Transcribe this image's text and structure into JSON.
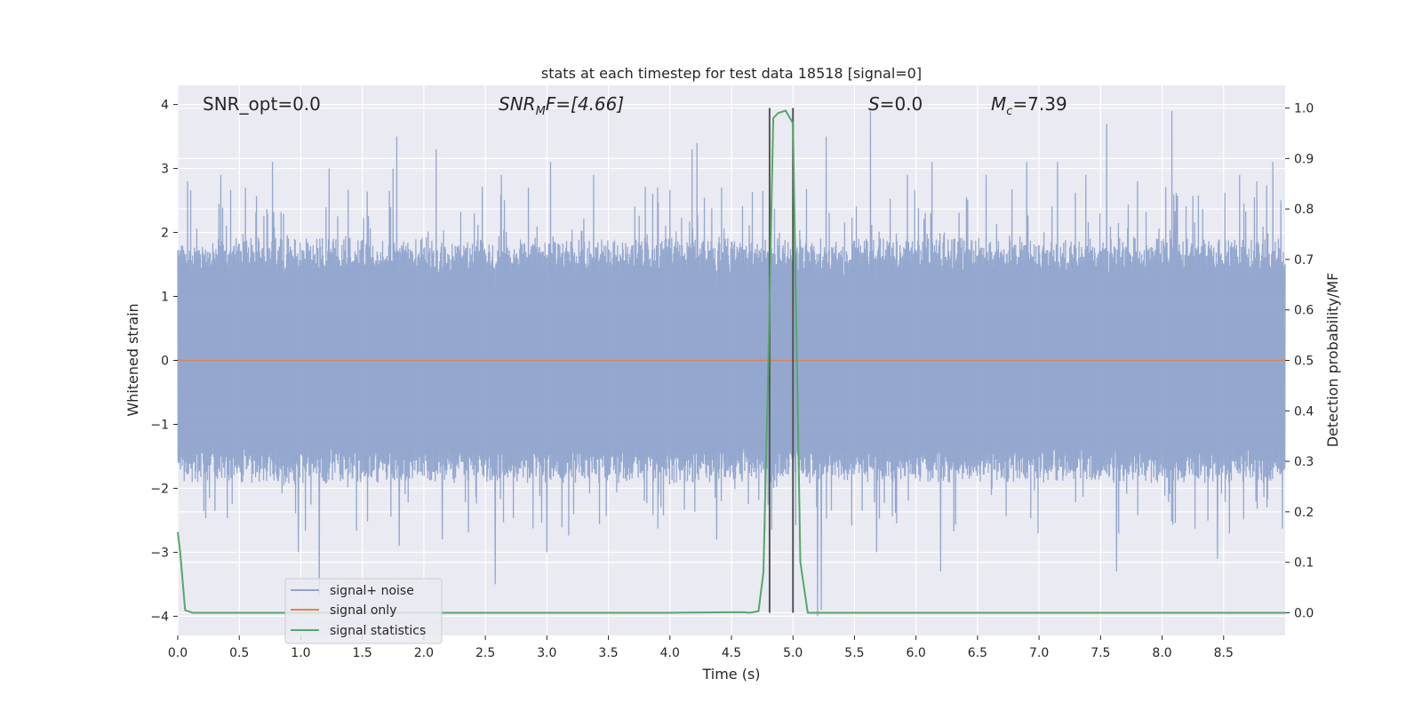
{
  "chart_data": {
    "type": "line",
    "title": "stats at each timestep for test data 18518 [signal=0]",
    "xlabel": "Time (s)",
    "ylabel": "Whitened strain",
    "y2label": "Detection probability/MF",
    "xlim": [
      0.0,
      9.0
    ],
    "ylim": [
      -4.3,
      4.3
    ],
    "y2lim": [
      -0.045,
      1.045
    ],
    "x_ticks": [
      "0.0",
      "0.5",
      "1.0",
      "1.5",
      "2.0",
      "2.5",
      "3.0",
      "3.5",
      "4.0",
      "4.5",
      "5.0",
      "5.5",
      "6.0",
      "6.5",
      "7.0",
      "7.5",
      "8.0",
      "8.5"
    ],
    "y_ticks": [
      "−4",
      "−3",
      "−2",
      "−1",
      "0",
      "1",
      "2",
      "3",
      "4"
    ],
    "y2_ticks": [
      "0.0",
      "0.1",
      "0.2",
      "0.3",
      "0.4",
      "0.5",
      "0.6",
      "0.7",
      "0.8",
      "0.9",
      "1.0"
    ],
    "grid": true,
    "legend_position": "lower-left",
    "colors": {
      "signal_noise": "#8fa4cc",
      "signal_only": "#dd8452",
      "signal_statistics": "#55a868",
      "vlines": "#555555",
      "background": "#eaeaf2"
    },
    "annotations": {
      "snr_opt": "SNR_opt=0.0",
      "snr_mf_main": "SNR",
      "snr_mf_sub": "M",
      "snr_mf_rest": "F=[4.66]",
      "s_italic": "S",
      "s_rest": "=0.0",
      "mc_main": "M",
      "mc_sub": "c",
      "mc_rest": "=7.39"
    },
    "vertical_lines_x": [
      4.81,
      5.0
    ],
    "series": [
      {
        "name": "signal+ noise",
        "axis": "left",
        "style": "noise band",
        "typical_range": [
          -1.6,
          1.6
        ],
        "peak_range": [
          -3.6,
          3.9
        ],
        "spikes": [
          [
            0.08,
            2.8
          ],
          [
            0.35,
            2.9
          ],
          [
            0.55,
            2.7
          ],
          [
            0.77,
            3.1
          ],
          [
            0.98,
            -3.0
          ],
          [
            1.15,
            -3.7
          ],
          [
            1.23,
            3.0
          ],
          [
            1.75,
            3.0
          ],
          [
            1.78,
            3.5
          ],
          [
            1.8,
            -2.9
          ],
          [
            2.1,
            3.3
          ],
          [
            2.15,
            -2.8
          ],
          [
            2.58,
            -3.5
          ],
          [
            2.63,
            2.9
          ],
          [
            3.0,
            -3.0
          ],
          [
            3.03,
            3.1
          ],
          [
            3.38,
            2.9
          ],
          [
            3.9,
            2.7
          ],
          [
            4.18,
            3.3
          ],
          [
            4.22,
            3.4
          ],
          [
            4.38,
            -2.8
          ],
          [
            4.42,
            2.7
          ],
          [
            5.2,
            -4.0
          ],
          [
            5.23,
            -3.9
          ],
          [
            5.27,
            3.5
          ],
          [
            5.63,
            3.9
          ],
          [
            5.68,
            -3.0
          ],
          [
            5.93,
            2.9
          ],
          [
            6.13,
            3.1
          ],
          [
            6.2,
            -3.3
          ],
          [
            6.57,
            2.9
          ],
          [
            6.9,
            3.1
          ],
          [
            7.15,
            3.1
          ],
          [
            7.38,
            2.9
          ],
          [
            7.55,
            3.7
          ],
          [
            7.63,
            -3.3
          ],
          [
            7.8,
            2.8
          ],
          [
            8.08,
            3.9
          ],
          [
            8.45,
            -3.1
          ],
          [
            8.63,
            2.9
          ],
          [
            8.77,
            2.8
          ],
          [
            8.9,
            3.1
          ]
        ]
      },
      {
        "name": "signal only",
        "axis": "left",
        "x": [
          0.0,
          9.0
        ],
        "y": [
          0.0,
          0.0
        ]
      },
      {
        "name": "signal statistics",
        "axis": "right",
        "x": [
          0.0,
          0.02,
          0.06,
          0.12,
          1.0,
          2.0,
          3.0,
          4.0,
          4.5,
          4.6,
          4.65,
          4.72,
          4.76,
          4.8,
          4.84,
          4.88,
          4.94,
          5.0,
          5.06,
          5.12,
          5.2,
          6.0,
          7.0,
          8.0,
          9.0
        ],
        "y": [
          0.16,
          0.12,
          0.005,
          0.0,
          0.0,
          0.0,
          0.0,
          0.0,
          0.001,
          0.001,
          0.0,
          0.003,
          0.08,
          0.5,
          0.98,
          0.99,
          0.995,
          0.97,
          0.1,
          0.0,
          0.0,
          0.0,
          0.0,
          0.0,
          0.0
        ]
      }
    ]
  }
}
